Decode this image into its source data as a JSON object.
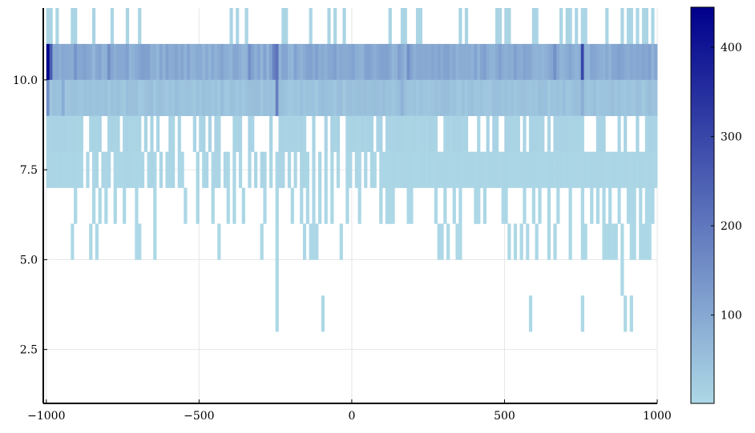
{
  "chart_data": {
    "type": "heatmap",
    "title": "",
    "xlabel": "",
    "ylabel": "",
    "xlim": [
      -1010,
      1000
    ],
    "ylim": [
      1,
      12
    ],
    "x_ticks": [
      -1000,
      -500,
      0,
      500,
      1000
    ],
    "x_tick_labels": [
      "−1000",
      "−500",
      "0",
      "500",
      "1000"
    ],
    "y_ticks": [
      2.5,
      5.0,
      7.5,
      10.0
    ],
    "y_tick_labels": [
      "2.5",
      "5.0",
      "7.5",
      "10.0"
    ],
    "colorbar": {
      "range": [
        1,
        445
      ],
      "ticks": [
        100,
        200,
        300,
        400
      ],
      "tick_labels": [
        "100",
        "200",
        "300",
        "400"
      ],
      "colors": [
        "#add8e6",
        "#00008b"
      ]
    },
    "grid": true,
    "bin_width": 10,
    "x_bin_start": -1000,
    "x_bin_end": 1000,
    "y_bins": [
      {
        "y0": 11,
        "y1": 12,
        "sparse": true,
        "occupied_x": [
          -995,
          -985,
          -965,
          -915,
          -905,
          -845,
          -785,
          -735,
          -695,
          -395,
          -375,
          -345,
          -225,
          -215,
          -135,
          -75,
          -55,
          -25,
          125,
          165,
          175,
          215,
          225,
          355,
          375,
          475,
          485,
          505,
          515,
          595,
          605,
          685,
          705,
          715,
          735,
          755,
          765,
          835,
          885,
          905,
          915,
          935,
          955,
          965,
          985
        ],
        "base_count": 8
      },
      {
        "y0": 10,
        "y1": 11,
        "sparse": false,
        "base_count": 95,
        "hotspots": [
          {
            "x": -995,
            "count": 445
          },
          {
            "x": -985,
            "count": 260
          },
          {
            "x": -245,
            "count": 210
          },
          {
            "x": -255,
            "count": 180
          },
          {
            "x": 755,
            "count": 300
          },
          {
            "x": -905,
            "count": 140
          },
          {
            "x": -795,
            "count": 150
          },
          {
            "x": -335,
            "count": 150
          },
          {
            "x": 185,
            "count": 150
          },
          {
            "x": 665,
            "count": 150
          }
        ]
      },
      {
        "y0": 9,
        "y1": 10,
        "sparse": false,
        "base_count": 45,
        "hotspots": [
          {
            "x": -995,
            "count": 150
          },
          {
            "x": -245,
            "count": 180
          },
          {
            "x": -945,
            "count": 90
          },
          {
            "x": 165,
            "count": 80
          },
          {
            "x": 755,
            "count": 90
          }
        ]
      },
      {
        "y0": 8,
        "y1": 9,
        "sparse": false,
        "base_count": 10,
        "gaps": [
          -875,
          -865,
          -815,
          -805,
          -755,
          -685,
          -665,
          -645,
          -625,
          -615,
          -605,
          -575,
          -555,
          -545,
          -535,
          -525,
          -505,
          -475,
          -455,
          -425,
          -415,
          -405,
          -395,
          -355,
          -345,
          -315,
          -305,
          -295,
          -285,
          -275,
          -255,
          -245,
          -145,
          -135,
          -115,
          -105,
          -95,
          -75,
          -35,
          -25,
          75,
          105,
          285,
          295,
          385,
          395,
          405,
          425,
          435,
          455,
          485,
          495,
          555,
          575,
          635,
          655,
          765,
          775,
          785,
          795,
          835,
          845,
          855,
          865,
          885,
          905,
          915,
          925,
          945,
          955
        ]
      },
      {
        "y0": 7,
        "y1": 8,
        "sparse": true,
        "base_count": 6,
        "occupied_x": [
          -995,
          -985,
          -975,
          -965,
          -955,
          -945,
          -935,
          -925,
          -915,
          -905,
          -895,
          -885,
          -865,
          -845,
          -835,
          -815,
          -805,
          -795,
          -775,
          -765,
          -755,
          -745,
          -735,
          -725,
          -715,
          -705,
          -695,
          -685,
          -665,
          -655,
          -645,
          -625,
          -605,
          -595,
          -585,
          -565,
          -555,
          -505,
          -485,
          -475,
          -455,
          -445,
          -435,
          -415,
          -405,
          -385,
          -365,
          -335,
          -315,
          -295,
          -285,
          -265,
          -245,
          -235,
          -225,
          -205,
          -185,
          -165,
          -155,
          -145,
          -125,
          -105,
          -85,
          -65,
          -45,
          -15,
          -5,
          15,
          25,
          45,
          65,
          75,
          95,
          105,
          115,
          125,
          135,
          145,
          155,
          165,
          175,
          185,
          195,
          205,
          215,
          225,
          235,
          245,
          255,
          265,
          275,
          285,
          295,
          305,
          315,
          325,
          335,
          345,
          355,
          365,
          375,
          385,
          395,
          405,
          415,
          425,
          435,
          445,
          455,
          465,
          475,
          485,
          495,
          505,
          515,
          525,
          535,
          545,
          555,
          565,
          575,
          585,
          595,
          605,
          615,
          625,
          635,
          645,
          655,
          665,
          675,
          685,
          695,
          705,
          715,
          725,
          735,
          745,
          755,
          765,
          775,
          785,
          795,
          805,
          815,
          825,
          835,
          845,
          855,
          865,
          875,
          885,
          895,
          905,
          915,
          925,
          935,
          945,
          955,
          965,
          975,
          985,
          995
        ]
      },
      {
        "y0": 6,
        "y1": 7,
        "sparse": true,
        "base_count": 3,
        "occupied_x": [
          -905,
          -845,
          -825,
          -805,
          -775,
          -745,
          -705,
          -645,
          -545,
          -505,
          -455,
          -405,
          -385,
          -355,
          -285,
          -245,
          -195,
          -165,
          -145,
          -125,
          -105,
          -85,
          -65,
          -15,
          25,
          95,
          115,
          125,
          135,
          185,
          195,
          275,
          305,
          335,
          355,
          405,
          415,
          435,
          495,
          505,
          565,
          595,
          615,
          645,
          675,
          715,
          755,
          785,
          805,
          825,
          845,
          875,
          905,
          915,
          925,
          945,
          965,
          975,
          985
        ]
      },
      {
        "y0": 5,
        "y1": 6,
        "sparse": true,
        "base_count": 2,
        "occupied_x": [
          -915,
          -855,
          -835,
          -705,
          -695,
          -645,
          -435,
          -295,
          -245,
          -155,
          -135,
          -125,
          -115,
          -35,
          285,
          295,
          315,
          345,
          355,
          515,
          535,
          555,
          575,
          605,
          645,
          665,
          715,
          755,
          765,
          825,
          835,
          845,
          855,
          865,
          885,
          915,
          925,
          945,
          955,
          965,
          975
        ]
      },
      {
        "y0": 4,
        "y1": 5,
        "sparse": true,
        "base_count": 1,
        "occupied_x": [
          -245,
          885
        ]
      },
      {
        "y0": 3,
        "y1": 4,
        "sparse": true,
        "base_count": 1,
        "occupied_x": [
          -245,
          -95,
          585,
          755,
          895,
          915
        ]
      }
    ]
  }
}
